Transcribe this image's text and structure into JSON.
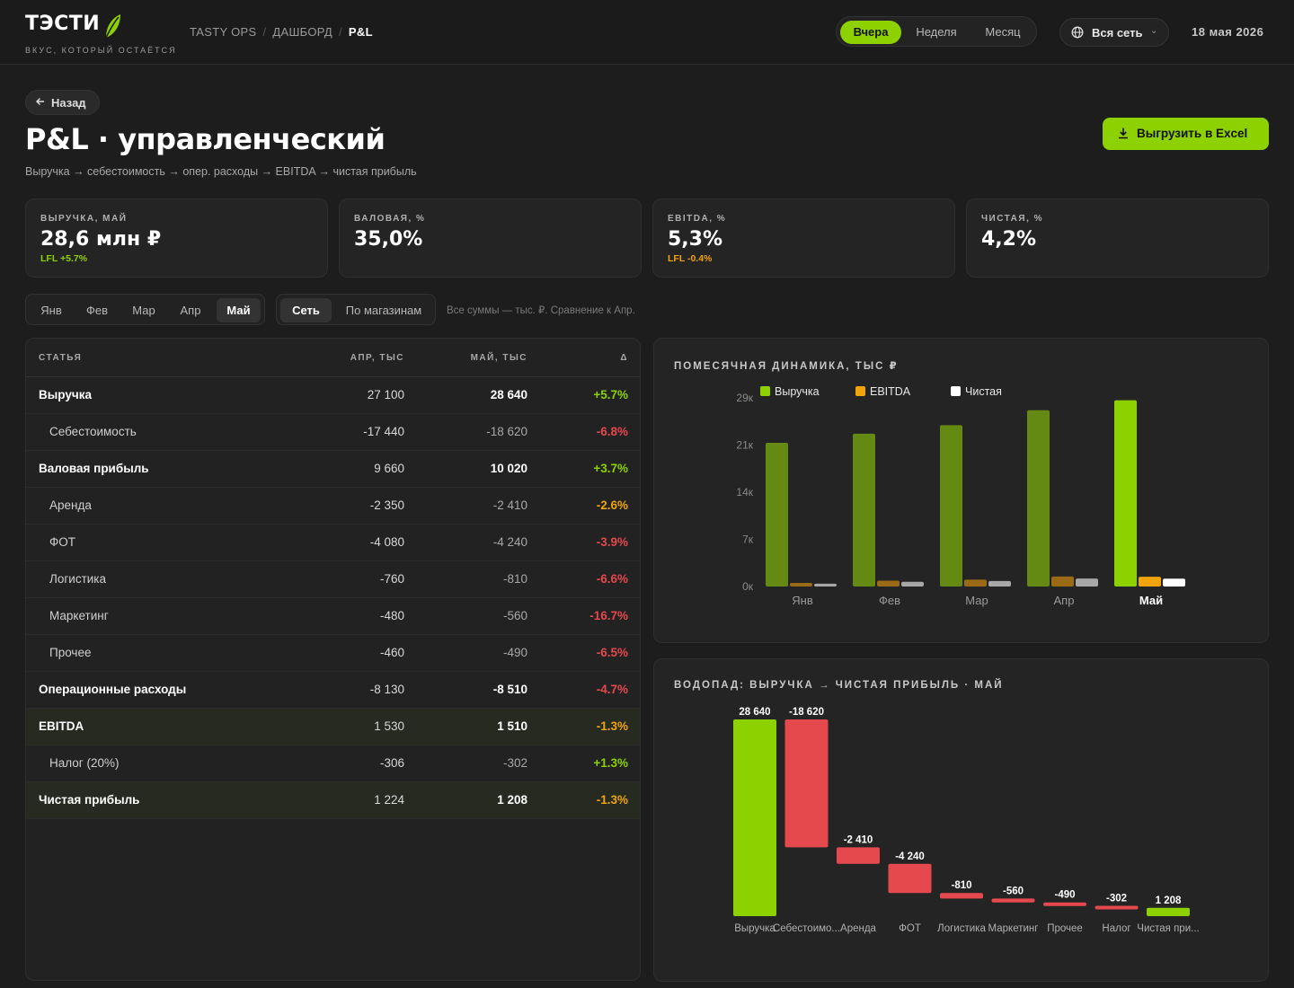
{
  "header": {
    "logo_text": "ТЭСТИ",
    "logo_tagline": "ВКУС, КОТОРЫЙ ОСТАЁТСЯ",
    "breadcrumbs": [
      "TASTY OPS",
      "ДАШБОРД",
      "P&L"
    ],
    "range_options": [
      {
        "label": "Вчера",
        "active": true
      },
      {
        "label": "Неделя",
        "active": false
      },
      {
        "label": "Месяц",
        "active": false
      }
    ],
    "network_label": "Вся сеть",
    "date": "18 мая 2026"
  },
  "page": {
    "back_label": "Назад",
    "title": "P&L · управленческий",
    "subtitle": "Выручка → себестоимость → опер. расходы → EBITDA → чистая прибыль",
    "export_label": "Выгрузить в Excel"
  },
  "kpis": [
    {
      "caption": "ВЫРУЧКА, МАЙ",
      "value": "28,6 млн ₽",
      "lfl": "LFL +5.7%",
      "lfl_color": "#8ed100"
    },
    {
      "caption": "ВАЛОВАЯ, %",
      "value": "35,0%",
      "lfl": "",
      "lfl_color": "#8ed100"
    },
    {
      "caption": "EBITDA, %",
      "value": "5,3%",
      "lfl": "LFL -0.4%",
      "lfl_color": "#f0a30a"
    },
    {
      "caption": "ЧИСТАЯ, %",
      "value": "4,2%",
      "lfl": "",
      "lfl_color": "#8ed100"
    }
  ],
  "filters": {
    "months": [
      {
        "label": "Янв",
        "active": false
      },
      {
        "label": "Фев",
        "active": false
      },
      {
        "label": "Мар",
        "active": false
      },
      {
        "label": "Апр",
        "active": false
      },
      {
        "label": "Май",
        "active": true
      }
    ],
    "scope": [
      {
        "label": "Сеть",
        "active": true
      },
      {
        "label": "По магазинам",
        "active": false
      }
    ],
    "note": "Все суммы — тыс. ₽. Сравнение к Апр."
  },
  "table": {
    "headers": [
      "СТАТЬЯ",
      "АПР, ТЫС",
      "МАЙ, ТЫС",
      "Δ"
    ],
    "rows": [
      {
        "name": "Выручка",
        "apr": "27 100",
        "may": "28 640",
        "delta": "+5.7%",
        "type": "bold",
        "delta_color": "#8ed100"
      },
      {
        "name": "Себестоимость",
        "apr": "-17 440",
        "may": "-18 620",
        "delta": "-6.8%",
        "type": "sub",
        "delta_color": "#e5484d"
      },
      {
        "name": "Валовая прибыль",
        "apr": "9 660",
        "may": "10 020",
        "delta": "+3.7%",
        "type": "bold",
        "delta_color": "#8ed100"
      },
      {
        "name": "Аренда",
        "apr": "-2 350",
        "may": "-2 410",
        "delta": "-2.6%",
        "type": "sub",
        "delta_color": "#f0a30a"
      },
      {
        "name": "ФОТ",
        "apr": "-4 080",
        "may": "-4 240",
        "delta": "-3.9%",
        "type": "sub",
        "delta_color": "#e5484d"
      },
      {
        "name": "Логистика",
        "apr": "-760",
        "may": "-810",
        "delta": "-6.6%",
        "type": "sub",
        "delta_color": "#e5484d"
      },
      {
        "name": "Маркетинг",
        "apr": "-480",
        "may": "-560",
        "delta": "-16.7%",
        "type": "sub",
        "delta_color": "#e5484d"
      },
      {
        "name": "Прочее",
        "apr": "-460",
        "may": "-490",
        "delta": "-6.5%",
        "type": "sub",
        "delta_color": "#e5484d"
      },
      {
        "name": "Операционные расходы",
        "apr": "-8 130",
        "may": "-8 510",
        "delta": "-4.7%",
        "type": "bold",
        "delta_color": "#e5484d"
      },
      {
        "name": "EBITDA",
        "apr": "1 530",
        "may": "1 510",
        "delta": "-1.3%",
        "type": "bold hl",
        "delta_color": "#f0a30a"
      },
      {
        "name": "Налог (20%)",
        "apr": "-306",
        "may": "-302",
        "delta": "+1.3%",
        "type": "sub",
        "delta_color": "#8ed100"
      },
      {
        "name": "Чистая прибыль",
        "apr": "1 224",
        "may": "1 208",
        "delta": "-1.3%",
        "type": "bold hl",
        "delta_color": "#f0a30a"
      }
    ]
  },
  "colors": {
    "accent": "#8ed100",
    "accent_dim": "#648a14",
    "ebitda": "#f0a30a",
    "ebitda_dim": "#9b6a14",
    "net": "#ffffff",
    "net_dim": "#a8a8a8",
    "negative": "#e5484d"
  },
  "chart_data": [
    {
      "type": "bar",
      "title": "ПОМЕСЯЧНАЯ ДИНАМИКА, ТЫС ₽",
      "categories": [
        "Янв",
        "Фев",
        "Мар",
        "Апр",
        "Май"
      ],
      "highlight": "Май",
      "yticks": [
        "0к",
        "7к",
        "14к",
        "21к",
        "29к"
      ],
      "ylim": [
        0,
        29000
      ],
      "legend_position": "top-left",
      "series": [
        {
          "name": "Выручка",
          "values": [
            22100,
            23500,
            24800,
            27100,
            28640
          ]
        },
        {
          "name": "EBITDA",
          "values": [
            550,
            900,
            1050,
            1530,
            1510
          ]
        },
        {
          "name": "Чистая",
          "values": [
            440,
            720,
            840,
            1224,
            1208
          ]
        }
      ]
    },
    {
      "type": "waterfall",
      "title": "ВОДОПАД: ВЫРУЧКА → ЧИСТАЯ ПРИБЫЛЬ · МАЙ",
      "categories": [
        "Выручка",
        "Себестоимо...",
        "Аренда",
        "ФОТ",
        "Логистика",
        "Маркетинг",
        "Прочее",
        "Налог",
        "Чистая при..."
      ],
      "values": [
        28640,
        -18620,
        -2410,
        -4240,
        -810,
        -560,
        -490,
        -302,
        1208
      ],
      "labels": [
        "28 640",
        "-18 620",
        "-2 410",
        "-4 240",
        "-810",
        "-560",
        "-490",
        "-302",
        "1 208"
      ],
      "kinds": [
        "total",
        "delta",
        "delta",
        "delta",
        "delta",
        "delta",
        "delta",
        "delta",
        "total"
      ]
    }
  ]
}
